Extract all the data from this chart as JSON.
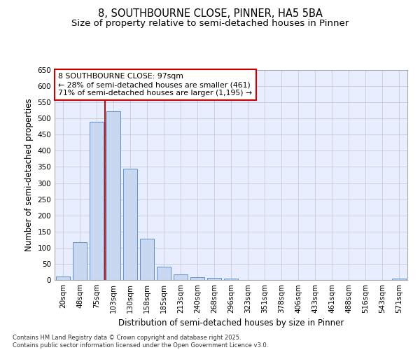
{
  "title1": "8, SOUTHBOURNE CLOSE, PINNER, HA5 5BA",
  "title2": "Size of property relative to semi-detached houses in Pinner",
  "xlabel": "Distribution of semi-detached houses by size in Pinner",
  "ylabel": "Number of semi-detached properties",
  "categories": [
    "20sqm",
    "48sqm",
    "75sqm",
    "103sqm",
    "130sqm",
    "158sqm",
    "185sqm",
    "213sqm",
    "240sqm",
    "268sqm",
    "296sqm",
    "323sqm",
    "351sqm",
    "378sqm",
    "406sqm",
    "433sqm",
    "461sqm",
    "488sqm",
    "516sqm",
    "543sqm",
    "571sqm"
  ],
  "values": [
    11,
    117,
    490,
    523,
    345,
    127,
    42,
    18,
    8,
    7,
    5,
    0,
    0,
    0,
    0,
    0,
    0,
    0,
    0,
    0,
    5
  ],
  "bar_color": "#c8d8f0",
  "bar_edge_color": "#6090c8",
  "annotation_text_line1": "8 SOUTHBOURNE CLOSE: 97sqm",
  "annotation_text_line2": "← 28% of semi-detached houses are smaller (461)",
  "annotation_text_line3": "71% of semi-detached houses are larger (1,195) →",
  "annotation_box_color": "#ffffff",
  "annotation_box_edge": "#cc0000",
  "vline_color": "#cc0000",
  "vline_x": 2.5,
  "ylim": [
    0,
    650
  ],
  "yticks": [
    0,
    50,
    100,
    150,
    200,
    250,
    300,
    350,
    400,
    450,
    500,
    550,
    600,
    650
  ],
  "grid_color": "#cccccc",
  "bg_color": "#e8eeff",
  "footer": "Contains HM Land Registry data © Crown copyright and database right 2025.\nContains public sector information licensed under the Open Government Licence v3.0."
}
